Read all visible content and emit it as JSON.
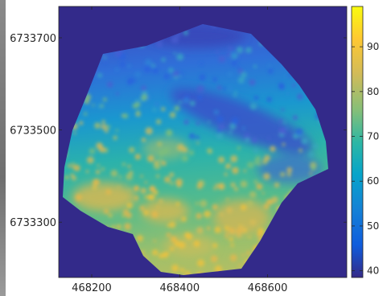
{
  "chart_data": {
    "type": "heatmap",
    "title": "",
    "xlabel": "",
    "ylabel": "",
    "x_ticks": [
      "468200",
      "468400",
      "468600"
    ],
    "x_tick_values": [
      468200,
      468400,
      468600
    ],
    "y_ticks": [
      "6733700",
      "6733500",
      "6733300"
    ],
    "y_tick_values": [
      6733700,
      6733500,
      6733300
    ],
    "xlim": [
      468125,
      468780
    ],
    "ylim": [
      6733180,
      6733768
    ],
    "colorbar": {
      "ticks": [
        "90",
        "80",
        "70",
        "60",
        "50",
        "40"
      ],
      "tick_values": [
        90,
        80,
        70,
        60,
        50,
        40
      ],
      "range": [
        38.5,
        99
      ],
      "colormap": "parula"
    },
    "colors": {
      "background": "#332a8a",
      "low": "#3f44c8",
      "mid": "#2db5a6",
      "high": "#f0b93a",
      "max": "#f9fb0e"
    }
  }
}
